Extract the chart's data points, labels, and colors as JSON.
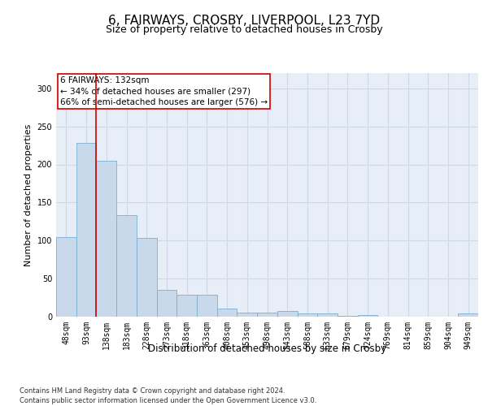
{
  "title": "6, FAIRWAYS, CROSBY, LIVERPOOL, L23 7YD",
  "subtitle": "Size of property relative to detached houses in Crosby",
  "xlabel": "Distribution of detached houses by size in Crosby",
  "ylabel": "Number of detached properties",
  "categories": [
    "48sqm",
    "93sqm",
    "138sqm",
    "183sqm",
    "228sqm",
    "273sqm",
    "318sqm",
    "363sqm",
    "408sqm",
    "453sqm",
    "498sqm",
    "543sqm",
    "588sqm",
    "633sqm",
    "679sqm",
    "724sqm",
    "769sqm",
    "814sqm",
    "859sqm",
    "904sqm",
    "949sqm"
  ],
  "values": [
    105,
    228,
    205,
    133,
    103,
    35,
    29,
    29,
    11,
    5,
    5,
    8,
    4,
    4,
    1,
    2,
    0,
    0,
    0,
    0,
    4
  ],
  "bar_color": "#c8d9ec",
  "bar_edge_color": "#7bafd4",
  "property_line_color": "#cc0000",
  "annotation_line1": "6 FAIRWAYS: 132sqm",
  "annotation_line2": "← 34% of detached houses are smaller (297)",
  "annotation_line3": "66% of semi-detached houses are larger (576) →",
  "annotation_box_color": "#ffffff",
  "annotation_box_edge_color": "#cc0000",
  "ylim": [
    0,
    320
  ],
  "yticks": [
    0,
    50,
    100,
    150,
    200,
    250,
    300
  ],
  "grid_color": "#d0d8e8",
  "bg_color": "#e8eef8",
  "footer_line1": "Contains HM Land Registry data © Crown copyright and database right 2024.",
  "footer_line2": "Contains public sector information licensed under the Open Government Licence v3.0.",
  "title_fontsize": 11,
  "subtitle_fontsize": 9,
  "xlabel_fontsize": 8.5,
  "ylabel_fontsize": 8,
  "tick_fontsize": 7,
  "annotation_fontsize": 7.5,
  "footer_fontsize": 6
}
